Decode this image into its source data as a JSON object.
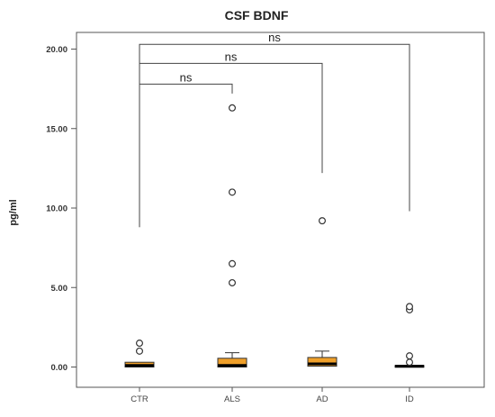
{
  "chart_data": {
    "type": "box",
    "title": "CSF BDNF",
    "xlabel": "",
    "ylabel": "pg/ml",
    "ylim": [
      -1.0,
      21.5
    ],
    "yticks": [
      0,
      5,
      10,
      15,
      20
    ],
    "ytick_labels": [
      "0.00",
      "5.00",
      "10.00",
      "15.00",
      "20.00"
    ],
    "grid": false,
    "box_color": "#f0a02a",
    "median_color": "#000000",
    "categories": [
      "CTR",
      "ALS",
      "AD",
      "ID"
    ],
    "boxes": [
      {
        "name": "CTR",
        "whisker_low": 0.0,
        "q1": 0.0,
        "median": 0.1,
        "q3": 0.3,
        "whisker_high": 0.3,
        "outliers": [
          1.0,
          1.5
        ]
      },
      {
        "name": "ALS",
        "whisker_low": 0.0,
        "q1": 0.0,
        "median": 0.1,
        "q3": 0.55,
        "whisker_high": 0.9,
        "outliers": [
          5.3,
          6.5,
          11.0,
          16.3
        ]
      },
      {
        "name": "AD",
        "whisker_low": 0.0,
        "q1": 0.05,
        "median": 0.2,
        "q3": 0.6,
        "whisker_high": 1.0,
        "outliers": [
          9.2
        ]
      },
      {
        "name": "ID",
        "whisker_low": 0.0,
        "q1": 0.0,
        "median": 0.05,
        "q3": 0.1,
        "whisker_high": 0.1,
        "outliers": [
          0.3,
          0.7,
          3.6,
          3.8
        ]
      }
    ],
    "comparisons": [
      {
        "from": "CTR",
        "to": "ALS",
        "label": "ns",
        "bracket_y": 17.8,
        "left_drop_to": 8.8,
        "right_drop_to": 17.2
      },
      {
        "from": "CTR",
        "to": "AD",
        "label": "ns",
        "bracket_y": 19.1,
        "left_drop_to": 8.8,
        "right_drop_to": 12.2
      },
      {
        "from": "CTR",
        "to": "ID",
        "label": "ns",
        "bracket_y": 20.3,
        "left_drop_to": 8.8,
        "right_drop_to": 9.8
      }
    ]
  }
}
